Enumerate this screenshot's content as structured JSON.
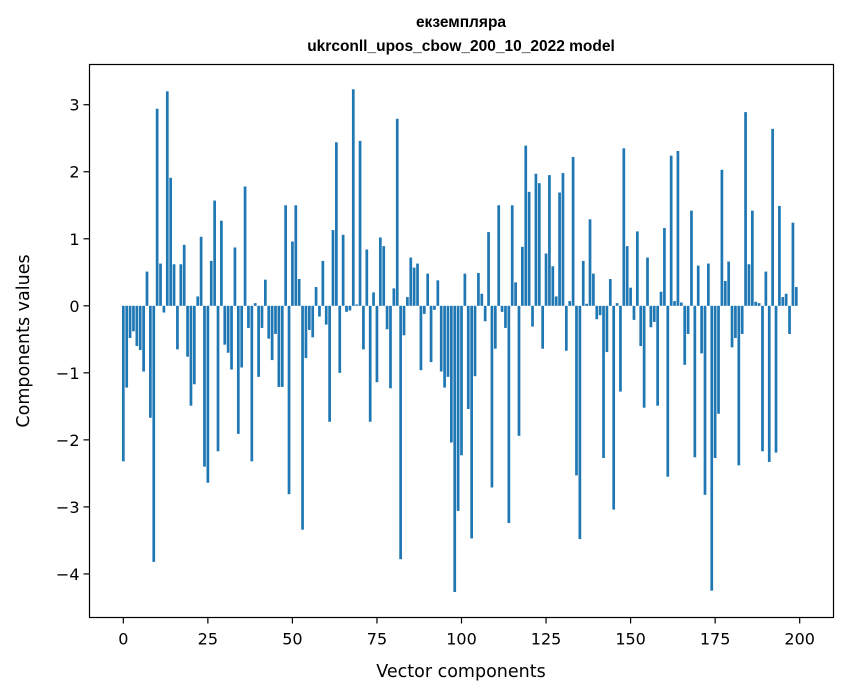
{
  "chart_data": {
    "type": "bar",
    "title_line1": "екземпляра",
    "title_line2": "ukrconll_upos_cbow_200_10_2022 model",
    "xlabel": "Vector components",
    "ylabel": "Components values",
    "xlim": [
      -10,
      210
    ],
    "ylim": [
      -4.65,
      3.6
    ],
    "xticks": [
      0,
      25,
      50,
      75,
      100,
      125,
      150,
      175,
      200
    ],
    "yticks": [
      3,
      2,
      1,
      0,
      -1,
      -2,
      -3,
      -4
    ],
    "ytick_labels": [
      "3",
      "2",
      "1",
      "0",
      "−1",
      "−2",
      "−3",
      "−4"
    ],
    "bar_color": "#1f77b4",
    "grid": false,
    "values": [
      -2.32,
      -1.22,
      -0.48,
      -0.38,
      -0.6,
      -0.66,
      -0.98,
      0.51,
      -1.67,
      -3.82,
      2.94,
      0.63,
      -0.1,
      3.2,
      1.91,
      0.62,
      -0.65,
      0.62,
      0.91,
      -0.76,
      -1.49,
      -1.17,
      0.14,
      1.03,
      -2.4,
      -2.64,
      0.67,
      1.57,
      -2.17,
      1.27,
      -0.58,
      -0.7,
      -0.95,
      0.87,
      -1.91,
      -0.92,
      1.78,
      -0.33,
      -2.32,
      0.04,
      -1.06,
      -0.33,
      0.39,
      -0.49,
      -0.81,
      -0.42,
      -1.21,
      -1.21,
      1.5,
      -2.81,
      0.96,
      1.5,
      0.4,
      -3.34,
      -0.78,
      -0.36,
      -0.47,
      0.28,
      -0.16,
      0.67,
      -0.28,
      -1.73,
      1.13,
      2.44,
      -1.0,
      1.06,
      -0.09,
      -0.07,
      3.23,
      0.02,
      2.46,
      -0.65,
      0.84,
      -1.73,
      0.2,
      -1.14,
      1.02,
      0.89,
      -0.35,
      -1.23,
      0.26,
      2.79,
      -3.78,
      -0.44,
      0.13,
      0.72,
      0.57,
      0.63,
      -0.96,
      -0.12,
      0.48,
      -0.84,
      -0.06,
      0.38,
      -0.98,
      -1.22,
      -1.06,
      -2.04,
      -4.27,
      -3.06,
      -2.23,
      0.48,
      -1.54,
      -3.47,
      -1.05,
      0.49,
      0.18,
      -0.23,
      1.1,
      -2.71,
      -0.64,
      1.5,
      -0.09,
      -0.33,
      -3.24,
      1.5,
      0.35,
      -1.94,
      0.88,
      2.39,
      1.7,
      -0.31,
      1.97,
      1.83,
      -0.64,
      0.78,
      1.95,
      0.59,
      0.14,
      1.69,
      1.98,
      -0.67,
      0.07,
      2.22,
      -2.53,
      -3.48,
      0.67,
      0.03,
      1.29,
      0.48,
      -0.2,
      -0.14,
      -2.27,
      -0.69,
      0.4,
      -3.04,
      0.04,
      -1.28,
      2.35,
      0.89,
      0.27,
      -0.21,
      1.11,
      -0.6,
      -1.52,
      0.72,
      -0.32,
      -0.24,
      -1.49,
      0.21,
      1.16,
      -2.55,
      2.24,
      0.07,
      2.31,
      0.05,
      -0.88,
      -0.42,
      1.42,
      -2.26,
      0.6,
      -0.71,
      -2.82,
      0.63,
      -4.25,
      -2.27,
      -1.61,
      2.03,
      0.37,
      0.66,
      -0.62,
      -0.48,
      -2.38,
      -0.42,
      2.89,
      0.62,
      1.42,
      0.06,
      0.04,
      -2.17,
      0.51,
      -2.33,
      2.64,
      -2.19,
      1.49,
      0.13,
      0.18,
      -0.42,
      1.24,
      0.28
    ]
  }
}
